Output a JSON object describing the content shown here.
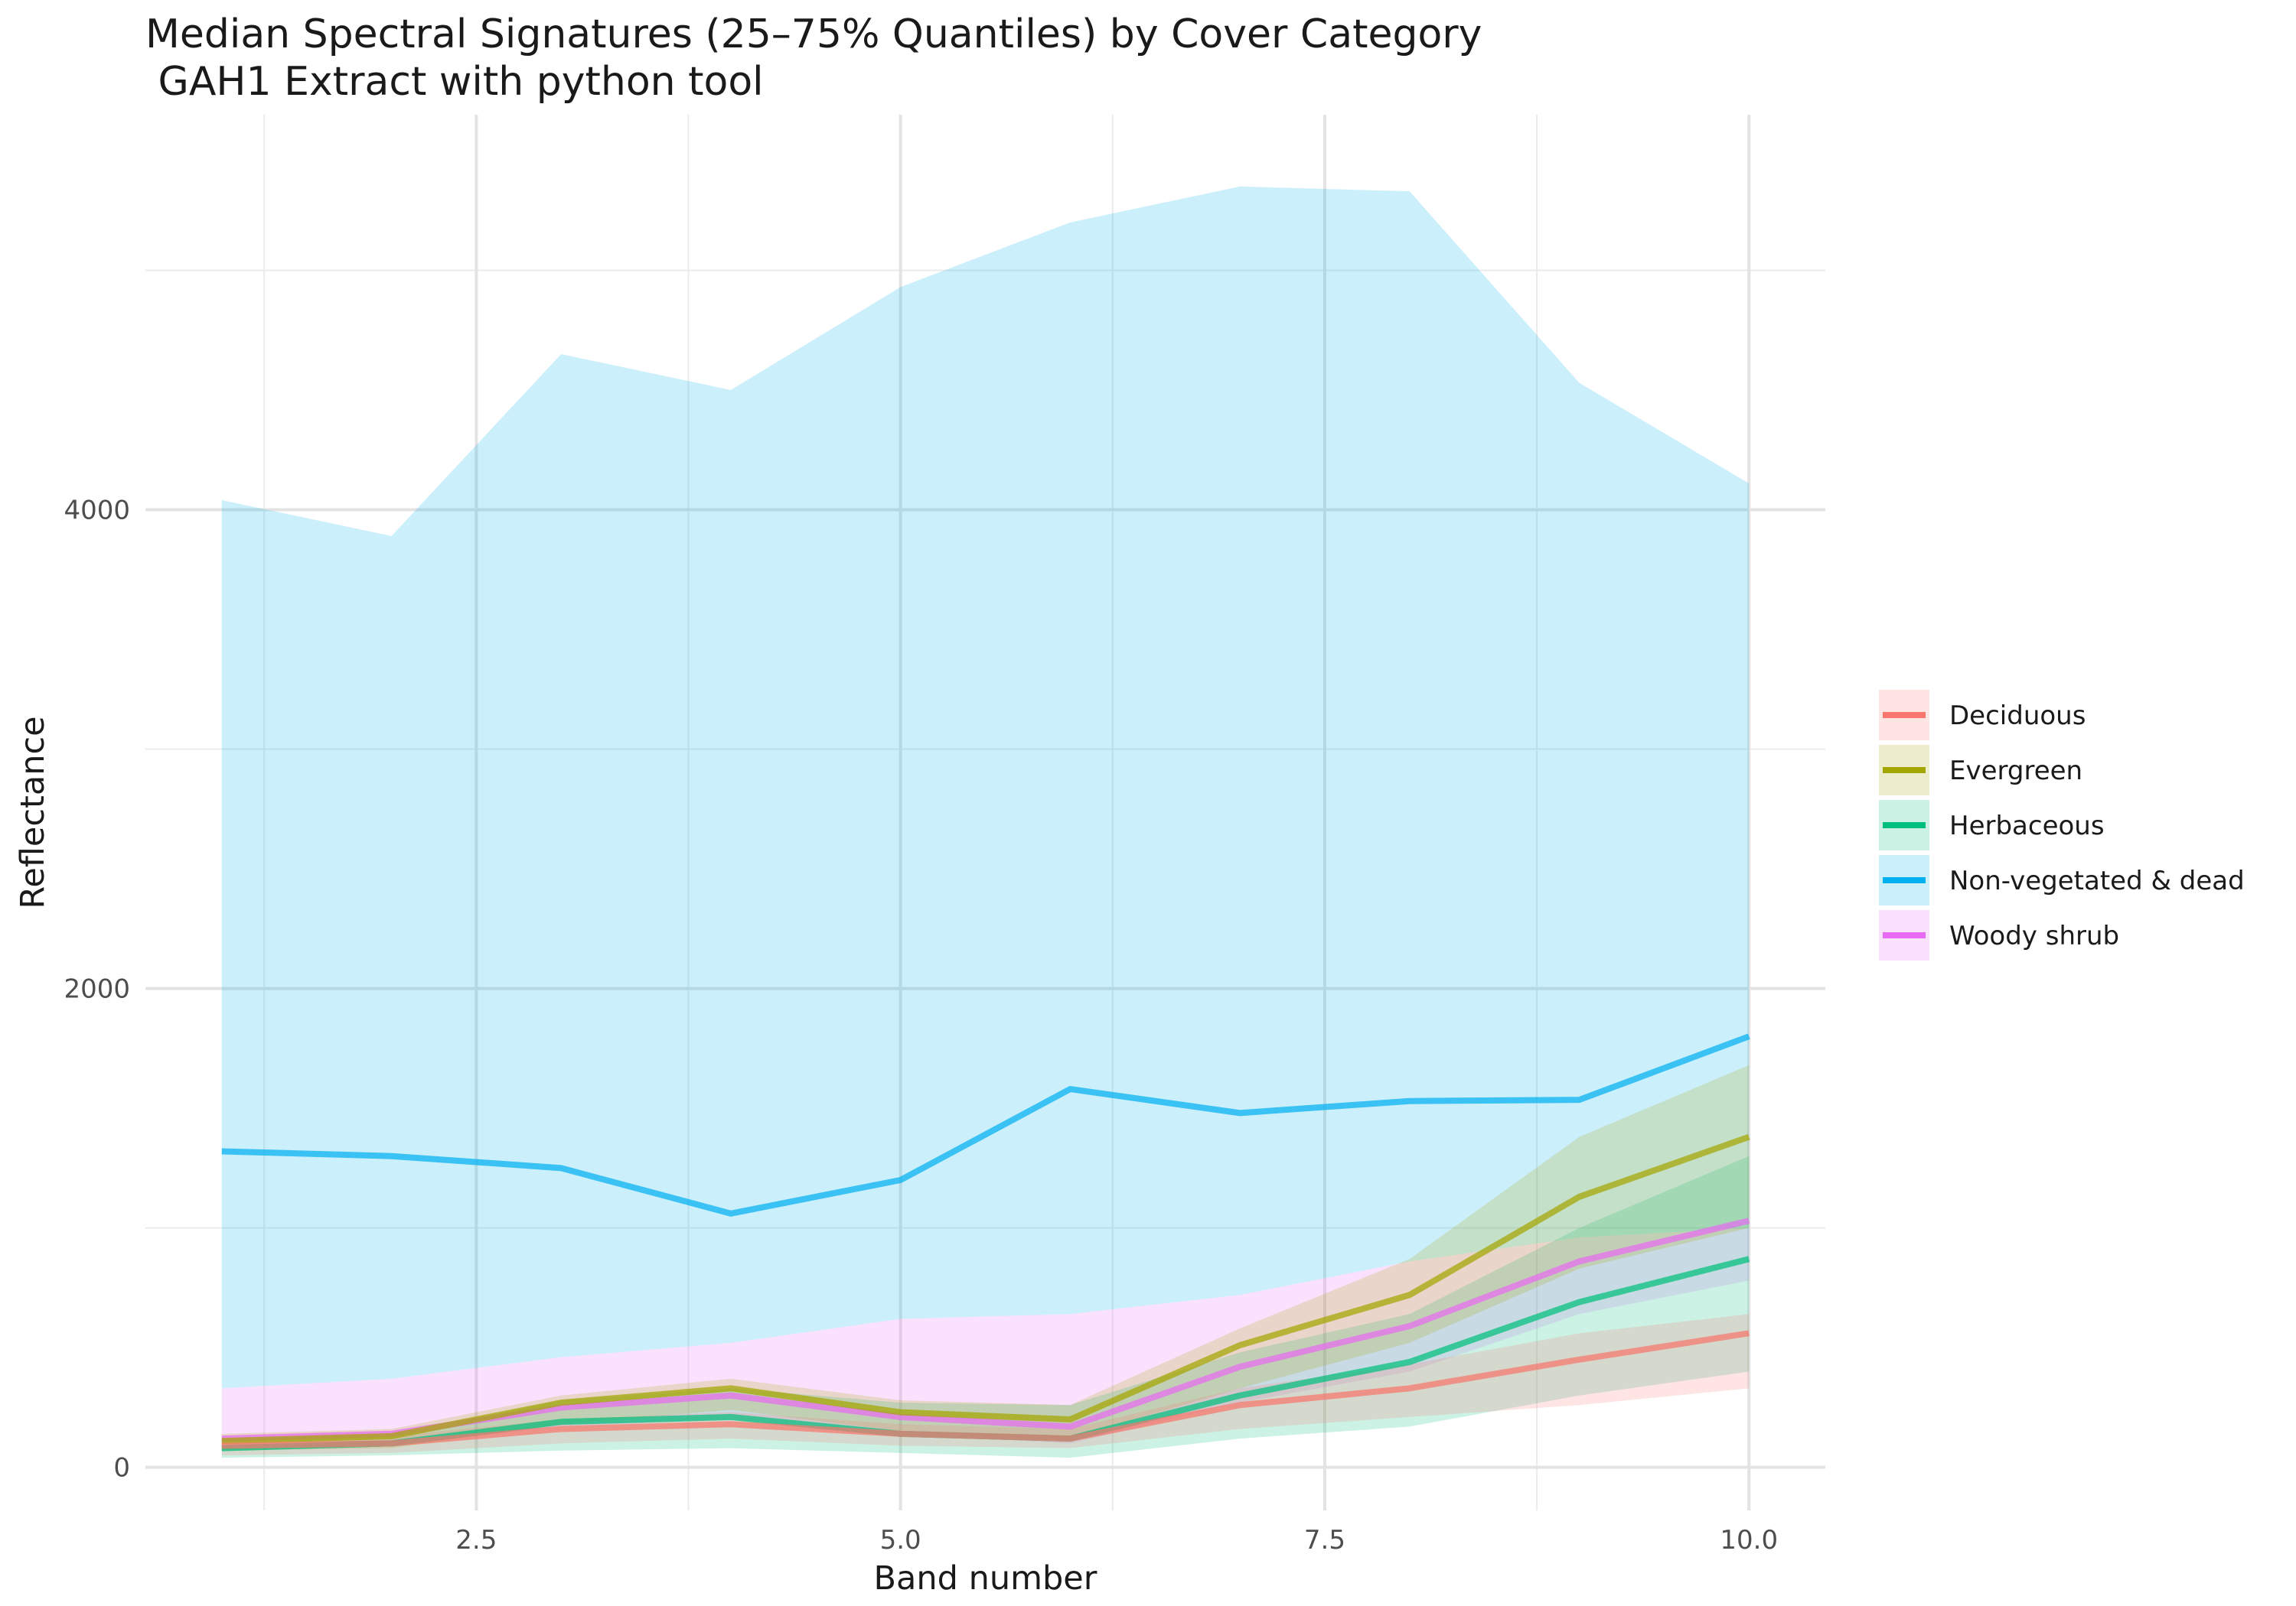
{
  "chart_data": {
    "type": "line",
    "title": "Median Spectral Signatures (25–75% Quantiles) by Cover Category",
    "subtitle": " GAH1 Extract with python tool",
    "xlabel": "Band number",
    "ylabel": "Reflectance",
    "x": [
      1,
      2,
      3,
      4,
      5,
      6,
      7,
      8,
      9,
      10
    ],
    "xlim": [
      0.55,
      10.45
    ],
    "ylim": [
      -180,
      5650
    ],
    "x_ticks": [
      2.5,
      5.0,
      7.5,
      10.0
    ],
    "x_tick_labels": [
      "2.5",
      "5.0",
      "7.5",
      "10.0"
    ],
    "y_ticks": [
      0,
      2000,
      4000
    ],
    "y_tick_labels": [
      "0",
      "2000",
      "4000"
    ],
    "grid": true,
    "legend_position": "right",
    "series": [
      {
        "name": "Non-vegetated & dead",
        "color": "#00B0F0",
        "median": [
          1320,
          1300,
          1250,
          1060,
          1200,
          1580,
          1480,
          1530,
          1535,
          1800
        ],
        "q25": [
          330,
          370,
          460,
          520,
          620,
          640,
          720,
          860,
          960,
          1000
        ],
        "q75": [
          4040,
          3890,
          4650,
          4500,
          4930,
          5200,
          5350,
          5330,
          4530,
          4110
        ]
      },
      {
        "name": "Woody shrub",
        "color": "#E76BF3",
        "median": [
          120,
          140,
          250,
          300,
          210,
          170,
          420,
          590,
          860,
          1030
        ],
        "q25": [
          70,
          90,
          170,
          200,
          140,
          100,
          270,
          400,
          640,
          780
        ],
        "q75": [
          330,
          370,
          460,
          520,
          620,
          640,
          720,
          860,
          960,
          1000
        ]
      },
      {
        "name": "Herbaceous",
        "color": "#00BF7D",
        "median": [
          80,
          100,
          190,
          210,
          140,
          120,
          300,
          440,
          690,
          870
        ],
        "q25": [
          40,
          50,
          70,
          80,
          60,
          40,
          120,
          170,
          300,
          400
        ],
        "q75": [
          110,
          130,
          280,
          330,
          270,
          260,
          480,
          640,
          1000,
          1300
        ]
      },
      {
        "name": "Evergreen",
        "color": "#A3A500",
        "median": [
          110,
          130,
          270,
          330,
          230,
          200,
          510,
          720,
          1130,
          1380
        ],
        "q25": [
          70,
          80,
          180,
          240,
          150,
          120,
          330,
          520,
          830,
          1000
        ],
        "q75": [
          140,
          160,
          300,
          370,
          280,
          260,
          580,
          870,
          1380,
          1680
        ]
      },
      {
        "name": "Deciduous",
        "color": "#F8766D",
        "median": [
          90,
          100,
          160,
          180,
          140,
          120,
          260,
          330,
          450,
          560
        ],
        "q25": [
          50,
          60,
          100,
          120,
          90,
          80,
          160,
          210,
          260,
          330
        ],
        "q75": [
          120,
          130,
          200,
          230,
          180,
          160,
          330,
          430,
          560,
          640
        ]
      }
    ],
    "legend": [
      "Deciduous",
      "Evergreen",
      "Herbaceous",
      "Non-vegetated & dead",
      "Woody shrub"
    ]
  }
}
